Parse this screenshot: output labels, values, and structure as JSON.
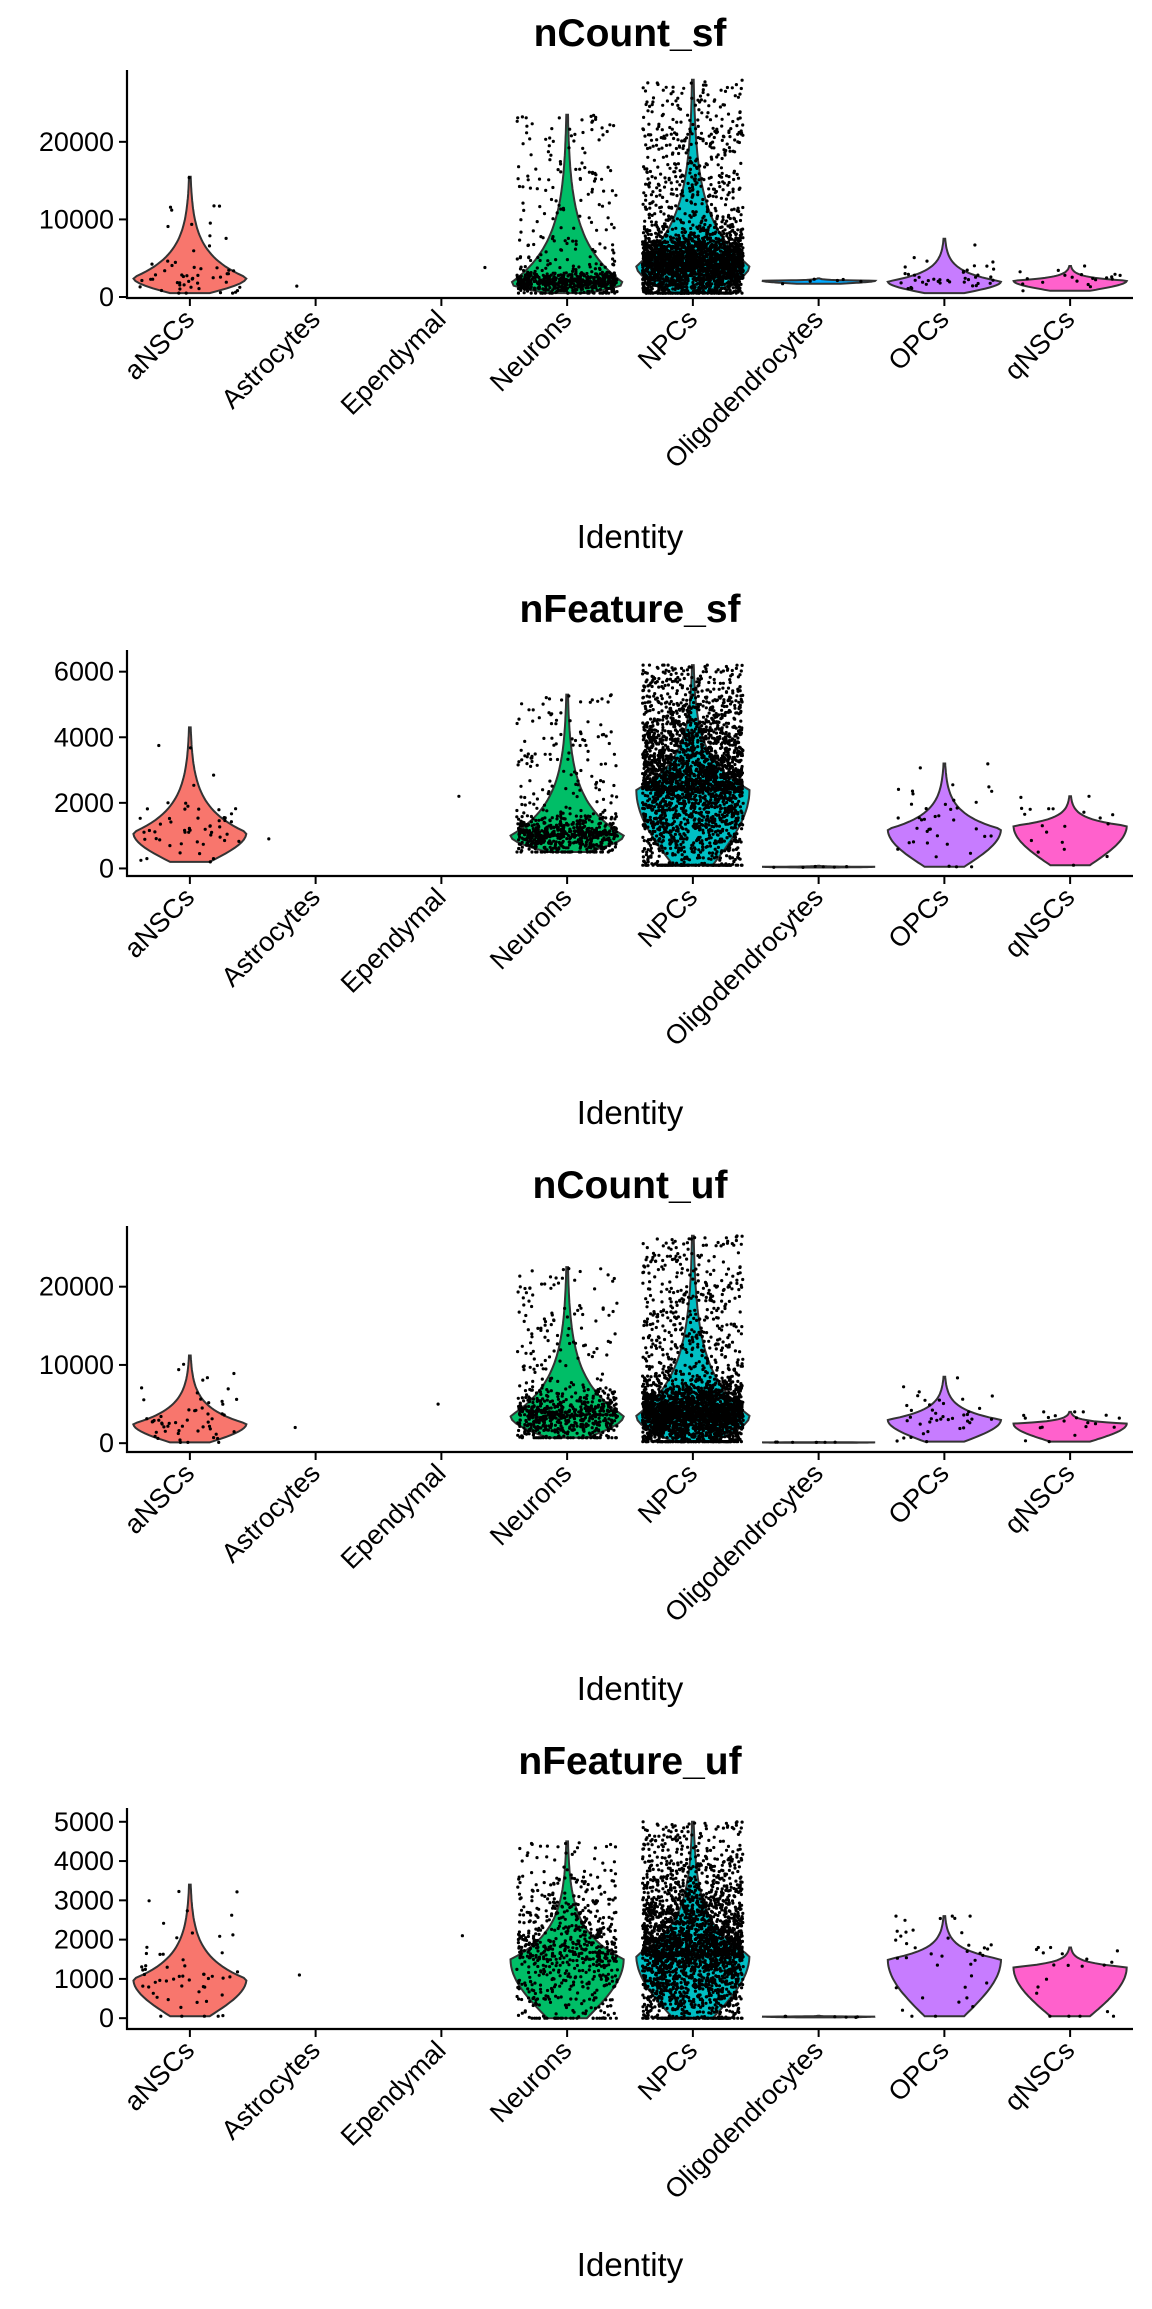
{
  "chart_data": [
    {
      "type": "violin",
      "title": "nCount_sf",
      "xlabel": "Identity",
      "ylabel": "",
      "categories": [
        "aNSCs",
        "Astrocytes",
        "Ependymal",
        "Neurons",
        "NPCs",
        "Oligodendrocytes",
        "OPCs",
        "qNSCs"
      ],
      "yticks": [
        0,
        10000,
        20000
      ],
      "ylim": [
        0,
        29000
      ],
      "grid": false,
      "legend": "none",
      "series": [
        {
          "category": "aNSCs",
          "color": "#F8766D",
          "min": 500,
          "max": 15500,
          "median": 2500,
          "n_points": 55
        },
        {
          "category": "Astrocytes",
          "color": "#CD9600",
          "min": 1400,
          "max": 1400,
          "median": 1400,
          "n_points": 1
        },
        {
          "category": "Ependymal",
          "color": "#7CAE00",
          "min": 3800,
          "max": 3800,
          "median": 3800,
          "n_points": 1
        },
        {
          "category": "Neurons",
          "color": "#00BE67",
          "min": 500,
          "max": 23500,
          "median": 1800,
          "n_points": 700
        },
        {
          "category": "NPCs",
          "color": "#00BFC4",
          "min": 500,
          "max": 28000,
          "median": 4000,
          "n_points": 7000
        },
        {
          "category": "Oligodendrocytes",
          "color": "#00A9FF",
          "min": 1700,
          "max": 2400,
          "median": 2100,
          "n_points": 6
        },
        {
          "category": "OPCs",
          "color": "#C77CFF",
          "min": 500,
          "max": 7500,
          "median": 2000,
          "n_points": 40
        },
        {
          "category": "qNSCs",
          "color": "#FF61CC",
          "min": 800,
          "max": 4000,
          "median": 2100,
          "n_points": 20
        }
      ]
    },
    {
      "type": "violin",
      "title": "nFeature_sf",
      "xlabel": "Identity",
      "ylabel": "",
      "categories": [
        "aNSCs",
        "Astrocytes",
        "Ependymal",
        "Neurons",
        "NPCs",
        "Oligodendrocytes",
        "OPCs",
        "qNSCs"
      ],
      "yticks": [
        0,
        2000,
        4000,
        6000
      ],
      "ylim": [
        -200,
        6600
      ],
      "grid": false,
      "legend": "none",
      "series": [
        {
          "category": "aNSCs",
          "color": "#F8766D",
          "min": 200,
          "max": 4300,
          "median": 1100,
          "n_points": 55
        },
        {
          "category": "Astrocytes",
          "color": "#CD9600",
          "min": 900,
          "max": 900,
          "median": 900,
          "n_points": 1
        },
        {
          "category": "Ependymal",
          "color": "#7CAE00",
          "min": 2200,
          "max": 2200,
          "median": 2200,
          "n_points": 1
        },
        {
          "category": "Neurons",
          "color": "#00BE67",
          "min": 500,
          "max": 5300,
          "median": 1000,
          "n_points": 700
        },
        {
          "category": "NPCs",
          "color": "#00BFC4",
          "min": 100,
          "max": 6200,
          "median": 2400,
          "n_points": 7000
        },
        {
          "category": "Oligodendrocytes",
          "color": "#00A9FF",
          "min": 30,
          "max": 80,
          "median": 50,
          "n_points": 6
        },
        {
          "category": "OPCs",
          "color": "#C77CFF",
          "min": 50,
          "max": 3200,
          "median": 1200,
          "n_points": 40
        },
        {
          "category": "qNSCs",
          "color": "#FF61CC",
          "min": 100,
          "max": 2200,
          "median": 1300,
          "n_points": 20
        }
      ]
    },
    {
      "type": "violin",
      "title": "nCount_uf",
      "xlabel": "Identity",
      "ylabel": "",
      "categories": [
        "aNSCs",
        "Astrocytes",
        "Ependymal",
        "Neurons",
        "NPCs",
        "Oligodendrocytes",
        "OPCs",
        "qNSCs"
      ],
      "yticks": [
        0,
        10000,
        20000
      ],
      "ylim": [
        -1000,
        27500
      ],
      "grid": false,
      "legend": "none",
      "series": [
        {
          "category": "aNSCs",
          "color": "#F8766D",
          "min": 100,
          "max": 11200,
          "median": 2500,
          "n_points": 55
        },
        {
          "category": "Astrocytes",
          "color": "#CD9600",
          "min": 2000,
          "max": 2000,
          "median": 2000,
          "n_points": 1
        },
        {
          "category": "Ependymal",
          "color": "#7CAE00",
          "min": 5000,
          "max": 5000,
          "median": 5000,
          "n_points": 1
        },
        {
          "category": "Neurons",
          "color": "#00BE67",
          "min": 700,
          "max": 22500,
          "median": 3500,
          "n_points": 700
        },
        {
          "category": "NPCs",
          "color": "#00BFC4",
          "min": 200,
          "max": 26500,
          "median": 3500,
          "n_points": 7000
        },
        {
          "category": "Oligodendrocytes",
          "color": "#00A9FF",
          "min": 50,
          "max": 150,
          "median": 100,
          "n_points": 6
        },
        {
          "category": "OPCs",
          "color": "#C77CFF",
          "min": 200,
          "max": 8500,
          "median": 3000,
          "n_points": 40
        },
        {
          "category": "qNSCs",
          "color": "#FF61CC",
          "min": 200,
          "max": 4000,
          "median": 2500,
          "n_points": 20
        }
      ]
    },
    {
      "type": "violin",
      "title": "nFeature_uf",
      "xlabel": "Identity",
      "ylabel": "",
      "categories": [
        "aNSCs",
        "Astrocytes",
        "Ependymal",
        "Neurons",
        "NPCs",
        "Oligodendrocytes",
        "OPCs",
        "qNSCs"
      ],
      "yticks": [
        0,
        1000,
        2000,
        3000,
        4000,
        5000
      ],
      "ylim": [
        -250,
        5300
      ],
      "grid": false,
      "legend": "none",
      "series": [
        {
          "category": "aNSCs",
          "color": "#F8766D",
          "min": 50,
          "max": 3400,
          "median": 1000,
          "n_points": 55
        },
        {
          "category": "Astrocytes",
          "color": "#CD9600",
          "min": 1100,
          "max": 1100,
          "median": 1100,
          "n_points": 1
        },
        {
          "category": "Ependymal",
          "color": "#7CAE00",
          "min": 2100,
          "max": 2100,
          "median": 2100,
          "n_points": 1
        },
        {
          "category": "Neurons",
          "color": "#00BE67",
          "min": 0,
          "max": 4500,
          "median": 1500,
          "n_points": 700
        },
        {
          "category": "NPCs",
          "color": "#00BFC4",
          "min": 0,
          "max": 5000,
          "median": 1600,
          "n_points": 7000
        },
        {
          "category": "Oligodendrocytes",
          "color": "#00A9FF",
          "min": 20,
          "max": 60,
          "median": 40,
          "n_points": 6
        },
        {
          "category": "OPCs",
          "color": "#C77CFF",
          "min": 50,
          "max": 2600,
          "median": 1500,
          "n_points": 40
        },
        {
          "category": "qNSCs",
          "color": "#FF61CC",
          "min": 50,
          "max": 1800,
          "median": 1300,
          "n_points": 20
        }
      ]
    }
  ]
}
